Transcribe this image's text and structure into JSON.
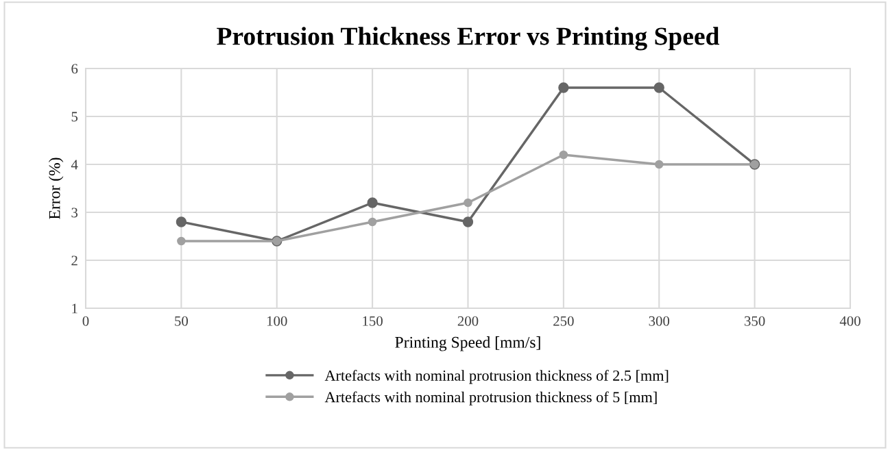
{
  "chart_data": {
    "type": "line",
    "title": "Protrusion Thickness Error vs Printing Speed",
    "xlabel": "Printing Speed [mm/s]",
    "ylabel": "Error (%)",
    "x": [
      50,
      100,
      150,
      200,
      250,
      300,
      350
    ],
    "series": [
      {
        "name": "Artefacts with nominal protrusion thickness of 2.5 [mm]",
        "color": "#666666",
        "values": [
          2.8,
          2.4,
          3.2,
          2.8,
          5.6,
          5.6,
          4.0
        ]
      },
      {
        "name": "Artefacts with nominal protrusion thickness of 5 [mm]",
        "color": "#a0a0a0",
        "values": [
          2.4,
          2.4,
          2.8,
          3.2,
          4.2,
          4.0,
          4.0
        ]
      }
    ],
    "xlim": [
      0,
      400
    ],
    "xticks": [
      0,
      50,
      100,
      150,
      200,
      250,
      300,
      350,
      400
    ],
    "ylim": [
      1,
      6
    ],
    "yticks": [
      1,
      2,
      3,
      4,
      5,
      6
    ],
    "grid": true,
    "legend": "bottom",
    "marker": "circle",
    "line_style": "solid"
  }
}
